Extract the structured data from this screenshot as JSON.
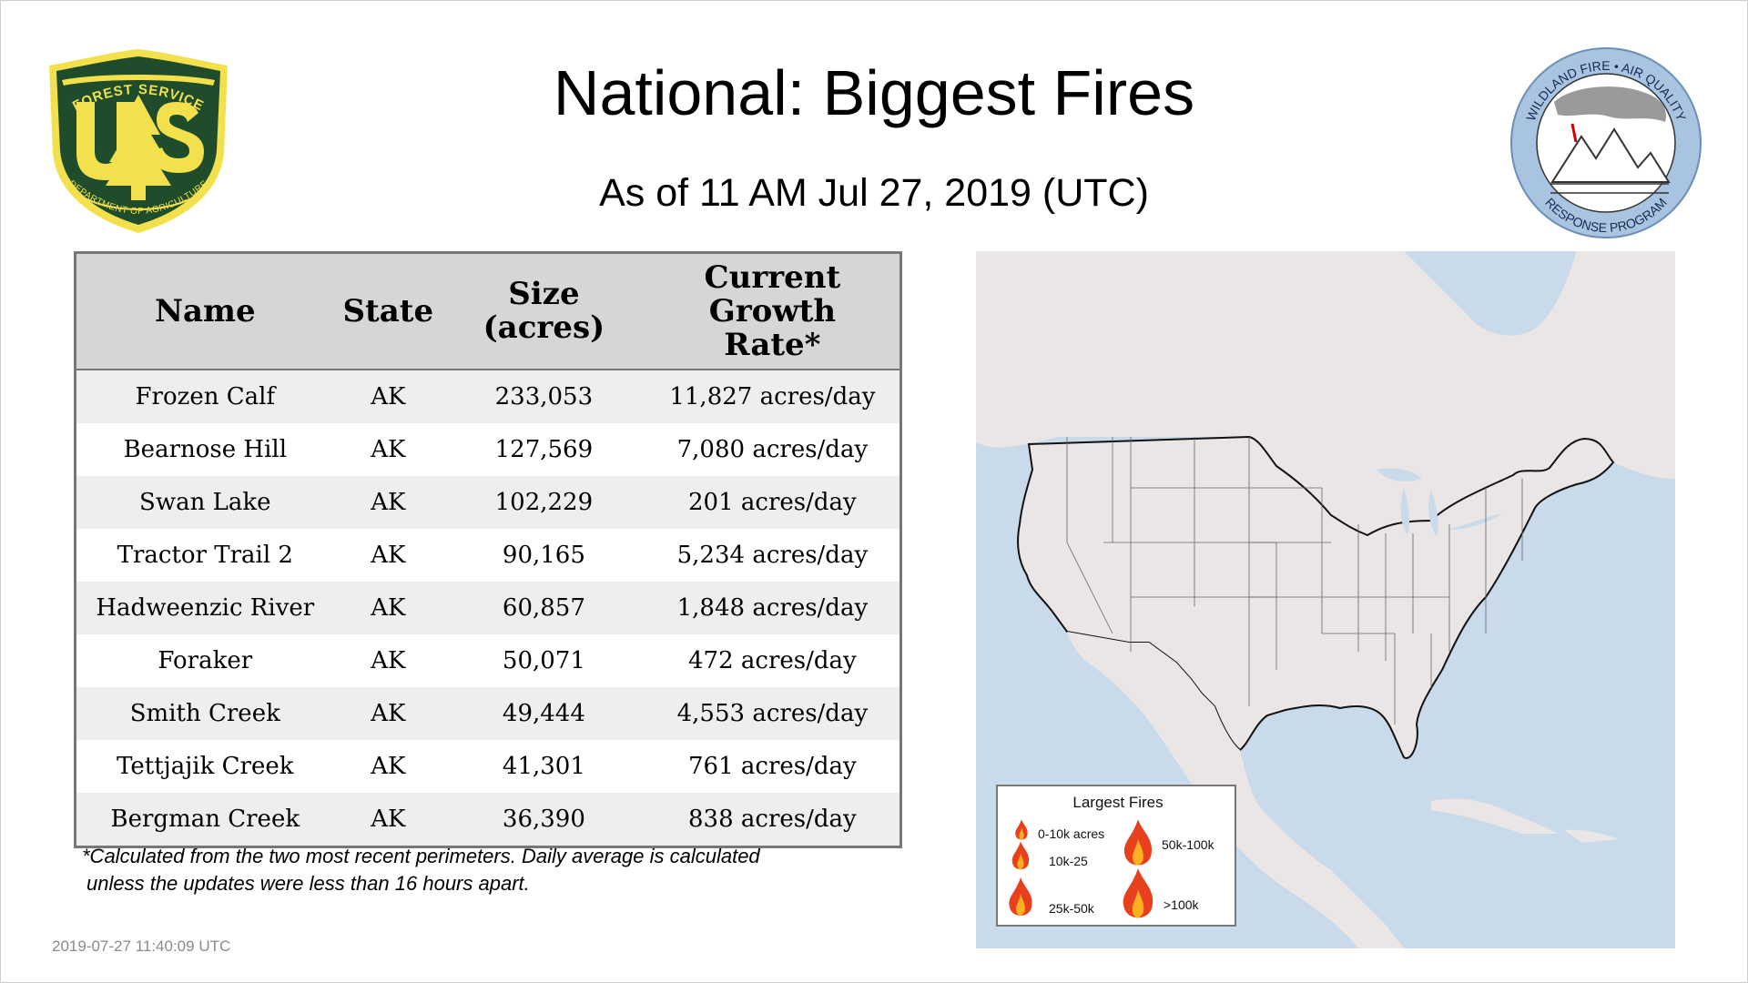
{
  "header": {
    "title": "National: Biggest Fires",
    "subtitle": "As of 11 AM Jul 27, 2019 (UTC)"
  },
  "logos": {
    "forest_service": {
      "icon": "forest-service-shield-logo",
      "top_text": "FOREST SERVICE",
      "letters": "U S",
      "bottom_text": "DEPARTMENT OF AGRICULTURE",
      "colors": {
        "green": "#1f4d2b",
        "gold": "#f3e04d"
      }
    },
    "wildland": {
      "icon": "wildland-fire-air-quality-logo",
      "top_text": "WILDLAND FIRE • AIR QUALITY",
      "bottom_text": "RESPONSE PROGRAM",
      "colors": {
        "ring": "#a8c4e0"
      }
    }
  },
  "table": {
    "headers": {
      "name": "Name",
      "state": "State",
      "size_line1": "Size",
      "size_line2": "(acres)",
      "rate_line1": "Current",
      "rate_line2": "Growth",
      "rate_line3": "Rate*"
    },
    "rows": [
      {
        "name": "Frozen Calf",
        "state": "AK",
        "size": "233,053",
        "rate": "11,827 acres/day"
      },
      {
        "name": "Bearnose Hill",
        "state": "AK",
        "size": "127,569",
        "rate": "7,080 acres/day"
      },
      {
        "name": "Swan Lake",
        "state": "AK",
        "size": "102,229",
        "rate": "201 acres/day"
      },
      {
        "name": "Tractor Trail 2",
        "state": "AK",
        "size": "90,165",
        "rate": "5,234 acres/day"
      },
      {
        "name": "Hadweenzic River",
        "state": "AK",
        "size": "60,857",
        "rate": "1,848 acres/day"
      },
      {
        "name": "Foraker",
        "state": "AK",
        "size": "50,071",
        "rate": "472 acres/day"
      },
      {
        "name": "Smith Creek",
        "state": "AK",
        "size": "49,444",
        "rate": "4,553 acres/day"
      },
      {
        "name": "Tettjajik Creek",
        "state": "AK",
        "size": "41,301",
        "rate": "761 acres/day"
      },
      {
        "name": "Bergman Creek",
        "state": "AK",
        "size": "36,390",
        "rate": "838 acres/day"
      }
    ],
    "colors": {
      "header_bg": "#d6d6d6",
      "row_alt": "#eeeeee",
      "border": "#777777"
    }
  },
  "footnote": {
    "line1": "*Calculated from the two most recent perimeters. Daily average is calculated",
    "line2": "unless the updates were less than 16 hours apart."
  },
  "timestamp": "2019-07-27 11:40:09 UTC",
  "map": {
    "colors": {
      "water": "#c9daea",
      "land": "#ebe6e6",
      "border": "#111111"
    },
    "legend": {
      "title": "Largest Fires",
      "items": [
        {
          "label": "0-10k acres",
          "icon": "fire-icon"
        },
        {
          "label": "10k-25",
          "icon": "fire-icon"
        },
        {
          "label": "25k-50k",
          "icon": "fire-icon"
        },
        {
          "label": "50k-100k",
          "icon": "fire-icon"
        },
        {
          "label": ">100k",
          "icon": "fire-icon"
        }
      ]
    }
  }
}
